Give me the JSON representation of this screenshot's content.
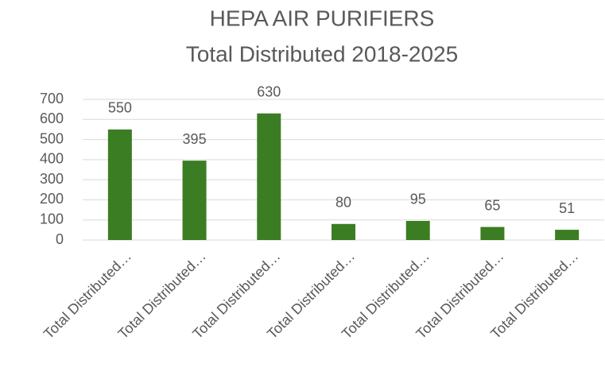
{
  "chart_data": {
    "type": "bar",
    "title": "HEPA AIR PURIFIERS",
    "subtitle": "Total Distributed 2018-2025",
    "categories": [
      "Total Distributed…",
      "Total Distributed…",
      "Total Distributed…",
      "Total Distributed…",
      "Total Distributed…",
      "Total Distributed…",
      "Total Distributed…"
    ],
    "values": [
      550,
      395,
      630,
      80,
      95,
      65,
      51
    ],
    "color": "#3b7d23",
    "ylim": [
      0,
      700
    ],
    "yticks": [
      0,
      100,
      200,
      300,
      400,
      500,
      600,
      700
    ],
    "grid": true
  }
}
